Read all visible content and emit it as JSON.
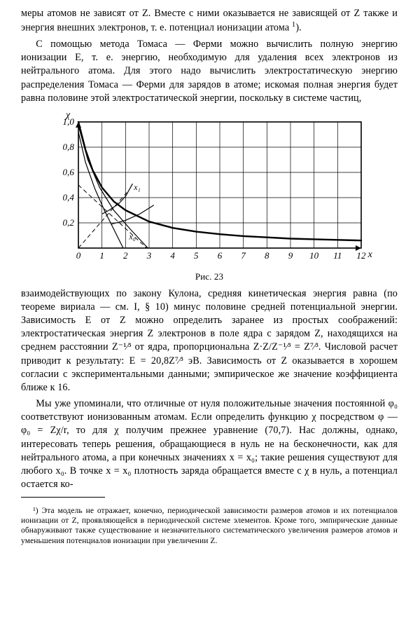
{
  "p1": "меры атомов не зависят от Z. Вместе с ними оказывается не зависящей от Z также и энергия внешних электронов, т. е. потенциал ионизации атома ",
  "fn_mark_1": "1",
  "p1_tail": ").",
  "p2": "С помощью метода Томаса — Ферми можно вычислить полную энергию ионизации E, т. е. энергию, необходимую для удаления всех электронов из нейтрального атома. Для этого надо вычислить электростатическую энергию распределения Томаса — Ферми для зарядов в атоме; искомая полная энергия будет равна половине этой электростатической энергии, поскольку в системе частиц,",
  "p3": "взаимодействующих по закону Кулона, средняя кинетическая энергия равна (по теореме вириала — см. I, § 10) минус половине средней потенциальной энергии. Зависимость E от Z можно определить заранее из простых соображений: электростатическая энергия Z электронов в поле ядра с зарядом Z, находящихся на среднем расстоянии Z⁻¹⁄³ от ядра, пропорциональна Z·Z/Z⁻¹⁄³ = Z⁷⁄³. Числовой расчет приводит к результату: E = 20,8Z⁷⁄³ эВ. Зависимость от Z оказывается в хорошем согласии с экспериментальными данными; эмпирическое же значение коэффициента ближе к 16.",
  "p4": "Мы уже упоминали, что отличные от нуля положительные значения постоянной φ₀ соответствуют ионизованным атомам. Если определить функцию χ посредством φ — φ₀ = Zχ/r, то для χ получим прежнее уравнение (70,7). Нас должны, однако, интересовать теперь решения, обращающиеся в нуль не на бесконечности, как для нейтрального атома, а при конечных значениях x = x₀; такие решения существуют для любого x₀. В точке x = x₀ плотность заряда обращается вместе с χ в нуль, а потенциал остается ко-",
  "footnote1": "¹) Эта модель не отражает, конечно, периодической зависимости размеров атомов и их потенциалов ионизации от Z, проявляющейся в периодической системе элементов. Кроме того, эмпирические данные обнаруживают также существование и незначительного систематического увеличения размеров атомов и уменьшения потенциалов ионизации при увеличении Z.",
  "fig_caption": "Рис. 23",
  "chart": {
    "type": "line",
    "xlabel": "x",
    "ylabel": "χ",
    "xlim": [
      0,
      12
    ],
    "ylim": [
      0,
      1.0
    ],
    "y_ticks": [
      "0",
      "0,2",
      "0,4",
      "0,6",
      "0,8",
      "1,0"
    ],
    "x_ticks": [
      "0",
      "1",
      "2",
      "3",
      "4",
      "5",
      "6",
      "7",
      "8",
      "9",
      "10",
      "11",
      "12"
    ],
    "grid_color": "#000000",
    "background": "#ffffff",
    "curves": {
      "main": [
        [
          0,
          1.0
        ],
        [
          0.3,
          0.78
        ],
        [
          0.6,
          0.62
        ],
        [
          1.0,
          0.48
        ],
        [
          1.5,
          0.37
        ],
        [
          2.0,
          0.3
        ],
        [
          3.0,
          0.21
        ],
        [
          4.0,
          0.16
        ],
        [
          5.0,
          0.13
        ],
        [
          6.0,
          0.11
        ],
        [
          7.0,
          0.095
        ],
        [
          8.0,
          0.085
        ],
        [
          9.0,
          0.075
        ],
        [
          10.0,
          0.07
        ],
        [
          11.0,
          0.065
        ],
        [
          12.0,
          0.06
        ]
      ],
      "branch_up1": [
        [
          1.0,
          0.27
        ],
        [
          1.3,
          0.3
        ],
        [
          1.7,
          0.35
        ],
        [
          2.0,
          0.41
        ],
        [
          2.3,
          0.51
        ]
      ],
      "branch_up2": [
        [
          1.4,
          0.19
        ],
        [
          2.0,
          0.22
        ],
        [
          2.6,
          0.27
        ],
        [
          3.2,
          0.34
        ]
      ],
      "branch_down1": [
        [
          0.0,
          0.92
        ],
        [
          0.3,
          0.68
        ],
        [
          0.7,
          0.47
        ],
        [
          1.1,
          0.3
        ],
        [
          1.5,
          0.15
        ],
        [
          1.9,
          0.0
        ]
      ],
      "branch_down2": [
        [
          0.0,
          0.97
        ],
        [
          0.4,
          0.7
        ],
        [
          0.9,
          0.48
        ],
        [
          1.5,
          0.3
        ],
        [
          2.2,
          0.15
        ],
        [
          2.95,
          0.0
        ]
      ],
      "dashed_down": [
        [
          0.0,
          0.5
        ],
        [
          2.9,
          0.0
        ]
      ],
      "dashed_up": [
        [
          0.0,
          0.0
        ],
        [
          2.05,
          0.44
        ]
      ]
    },
    "stroke_color": "#000000",
    "line_width_main": 2.4,
    "line_width_thin": 1.2,
    "dash_pattern": "6,4",
    "x1_label": "x₁",
    "x0_label": "x₀"
  }
}
